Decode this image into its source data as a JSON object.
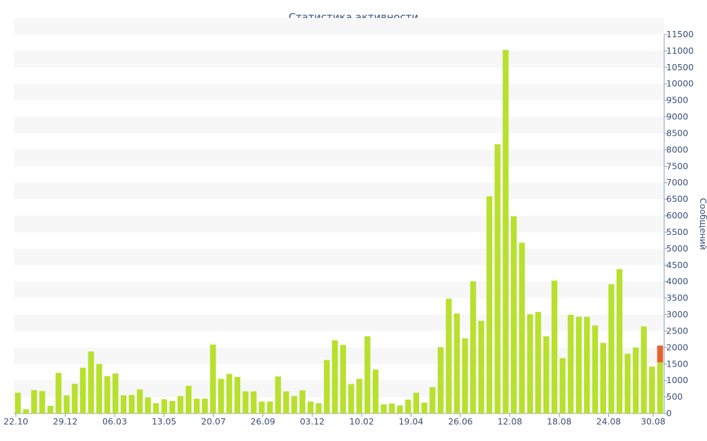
{
  "chart_data": {
    "type": "bar",
    "title": "Статистика активности",
    "ylabel": "Сообщений",
    "ylim": [
      0,
      11500
    ],
    "ytick_step": 500,
    "y_axis_position": "right",
    "grid": "alternating horizontal bands",
    "x_tick_labels": [
      "22.10",
      "29.12",
      "06.03",
      "13.05",
      "20.07",
      "26.09",
      "03.12",
      "10.02",
      "19.04",
      "26.06",
      "12.08",
      "18.08",
      "24.08",
      "30.08"
    ],
    "colors": {
      "bar": "#b8e02e",
      "highlight": "#e8602c",
      "text": "#3c4d7a",
      "band": "#f7f7f7"
    },
    "values": [
      630,
      130,
      710,
      680,
      230,
      1230,
      550,
      900,
      1390,
      1880,
      1500,
      1130,
      1210,
      550,
      560,
      730,
      490,
      310,
      430,
      380,
      530,
      840,
      450,
      450,
      2090,
      1050,
      1200,
      1110,
      670,
      670,
      360,
      360,
      1120,
      670,
      530,
      700,
      360,
      310,
      1620,
      2220,
      2080,
      890,
      1050,
      2340,
      1330,
      280,
      300,
      240,
      420,
      630,
      330,
      800,
      2010,
      3480,
      3030,
      2280,
      4010,
      2810,
      6590,
      8170,
      11030,
      5980,
      5180,
      3010,
      3080,
      2340,
      4030,
      1680,
      2990,
      2930,
      2930,
      2670,
      2140,
      3920,
      4380,
      1810,
      2000,
      2640,
      1420,
      1550
    ],
    "highlight_last": 2060
  }
}
